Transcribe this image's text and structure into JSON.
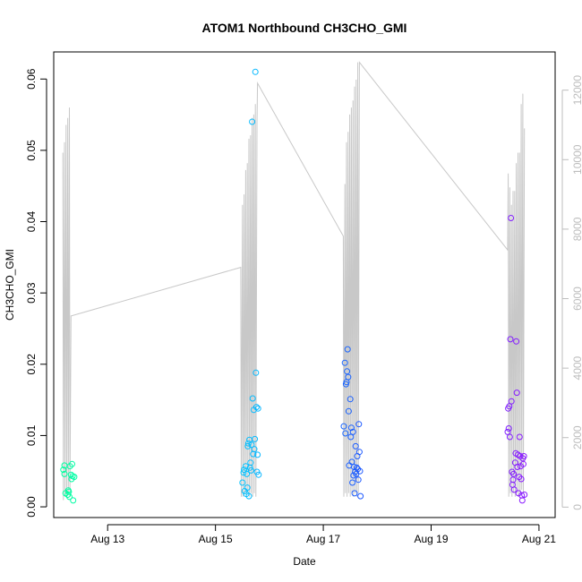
{
  "chart_data": {
    "type": "scatter",
    "title": "ATOM1 Northbound CH3CHO_GMI",
    "xlabel": "Date",
    "ylabel": "CH3CHO_GMI",
    "y2label": "",
    "x_ticks": [
      {
        "value": 13,
        "label": "Aug 13"
      },
      {
        "value": 15,
        "label": "Aug 15"
      },
      {
        "value": 17,
        "label": "Aug 17"
      },
      {
        "value": 19,
        "label": "Aug 19"
      },
      {
        "value": 21,
        "label": "Aug 21"
      }
    ],
    "xlim": [
      12.0,
      21.3
    ],
    "ylim": [
      -0.0015,
      0.0638
    ],
    "y_ticks": [
      "0.00",
      "0.01",
      "0.02",
      "0.03",
      "0.04",
      "0.05",
      "0.06"
    ],
    "y2lim": [
      -300,
      13100
    ],
    "y2_ticks": [
      "0",
      "2000",
      "4000",
      "6000",
      "8000",
      "10000",
      "12000"
    ],
    "legend": "none",
    "grid": false,
    "colors": {
      "altitude_line": "#c8c8c8",
      "axis": "#000000",
      "secondary_axis": "#bdbdbd",
      "color_scale": [
        "#00ffa0",
        "#00dcff",
        "#2050ff",
        "#8a1aff"
      ]
    },
    "series": [
      {
        "type": "scatter",
        "x_unit": "day of August",
        "points": [
          [
            12.18,
            0.0052
          ],
          [
            12.2,
            0.0046
          ],
          [
            12.22,
            0.0019
          ],
          [
            12.2,
            0.0058
          ],
          [
            12.26,
            0.0017
          ],
          [
            12.27,
            0.0023
          ],
          [
            12.28,
            0.0021
          ],
          [
            12.29,
            0.0014
          ],
          [
            12.3,
            0.0057
          ],
          [
            12.32,
            0.0045
          ],
          [
            12.33,
            0.0039
          ],
          [
            12.34,
            0.006
          ],
          [
            12.35,
            0.0043
          ],
          [
            12.36,
            0.0009
          ],
          [
            12.38,
            0.0042
          ],
          [
            15.5,
            0.0034
          ],
          [
            15.52,
            0.0048
          ],
          [
            15.53,
            0.0052
          ],
          [
            15.54,
            0.0022
          ],
          [
            15.56,
            0.0057
          ],
          [
            15.57,
            0.0018
          ],
          [
            15.58,
            0.0046
          ],
          [
            15.59,
            0.0027
          ],
          [
            15.6,
            0.0085
          ],
          [
            15.61,
            0.0089
          ],
          [
            15.62,
            0.0015
          ],
          [
            15.63,
            0.0094
          ],
          [
            15.64,
            0.0055
          ],
          [
            15.65,
            0.0062
          ],
          [
            15.66,
            0.0051
          ],
          [
            15.67,
            0.0087
          ],
          [
            15.68,
            0.054
          ],
          [
            15.69,
            0.0152
          ],
          [
            15.7,
            0.0074
          ],
          [
            15.71,
            0.0136
          ],
          [
            15.72,
            0.0081
          ],
          [
            15.73,
            0.0095
          ],
          [
            15.74,
            0.061
          ],
          [
            15.75,
            0.0188
          ],
          [
            15.76,
            0.014
          ],
          [
            15.77,
            0.0049
          ],
          [
            15.78,
            0.0073
          ],
          [
            15.79,
            0.0138
          ],
          [
            15.8,
            0.0045
          ],
          [
            17.38,
            0.0113
          ],
          [
            17.4,
            0.0202
          ],
          [
            17.41,
            0.0103
          ],
          [
            17.42,
            0.0172
          ],
          [
            17.43,
            0.0175
          ],
          [
            17.44,
            0.019
          ],
          [
            17.45,
            0.0221
          ],
          [
            17.46,
            0.0182
          ],
          [
            17.47,
            0.0134
          ],
          [
            17.48,
            0.0058
          ],
          [
            17.5,
            0.0151
          ],
          [
            17.51,
            0.0098
          ],
          [
            17.52,
            0.0111
          ],
          [
            17.53,
            0.0063
          ],
          [
            17.54,
            0.0034
          ],
          [
            17.55,
            0.0105
          ],
          [
            17.56,
            0.0044
          ],
          [
            17.57,
            0.0056
          ],
          [
            17.58,
            0.0019
          ],
          [
            17.59,
            0.0049
          ],
          [
            17.6,
            0.0085
          ],
          [
            17.61,
            0.0046
          ],
          [
            17.62,
            0.0055
          ],
          [
            17.63,
            0.0071
          ],
          [
            17.64,
            0.0053
          ],
          [
            17.65,
            0.0038
          ],
          [
            17.66,
            0.0116
          ],
          [
            17.67,
            0.0077
          ],
          [
            17.68,
            0.005
          ],
          [
            17.69,
            0.0015
          ],
          [
            20.42,
            0.0105
          ],
          [
            20.43,
            0.0138
          ],
          [
            20.44,
            0.011
          ],
          [
            20.45,
            0.0141
          ],
          [
            20.46,
            0.0098
          ],
          [
            20.47,
            0.0235
          ],
          [
            20.48,
            0.0405
          ],
          [
            20.49,
            0.0148
          ],
          [
            20.5,
            0.0049
          ],
          [
            20.51,
            0.0031
          ],
          [
            20.52,
            0.0038
          ],
          [
            20.53,
            0.0046
          ],
          [
            20.54,
            0.0024
          ],
          [
            20.56,
            0.0062
          ],
          [
            20.57,
            0.0075
          ],
          [
            20.58,
            0.0232
          ],
          [
            20.59,
            0.016
          ],
          [
            20.6,
            0.0056
          ],
          [
            20.61,
            0.0073
          ],
          [
            20.62,
            0.0019
          ],
          [
            20.63,
            0.0042
          ],
          [
            20.64,
            0.0098
          ],
          [
            20.65,
            0.0071
          ],
          [
            20.66,
            0.0057
          ],
          [
            20.67,
            0.0039
          ],
          [
            20.68,
            0.0016
          ],
          [
            20.69,
            0.0009
          ],
          [
            20.7,
            0.0068
          ],
          [
            20.71,
            0.006
          ],
          [
            20.72,
            0.0071
          ],
          [
            20.73,
            0.0017
          ]
        ]
      },
      {
        "type": "line",
        "axis": "secondary",
        "x_unit": "day of August",
        "points": [
          [
            12.17,
            10200
          ],
          [
            12.18,
            200
          ],
          [
            12.2,
            10500
          ],
          [
            12.21,
            300
          ],
          [
            12.23,
            11000
          ],
          [
            12.24,
            300
          ],
          [
            12.26,
            11200
          ],
          [
            12.27,
            400
          ],
          [
            12.29,
            11500
          ],
          [
            12.3,
            300
          ],
          [
            12.32,
            5500
          ],
          [
            15.47,
            6900
          ],
          [
            15.48,
            300
          ],
          [
            15.5,
            8700
          ],
          [
            15.51,
            300
          ],
          [
            15.53,
            9000
          ],
          [
            15.54,
            400
          ],
          [
            15.56,
            9700
          ],
          [
            15.57,
            300
          ],
          [
            15.59,
            9900
          ],
          [
            15.6,
            400
          ],
          [
            15.62,
            10600
          ],
          [
            15.63,
            300
          ],
          [
            15.65,
            10700
          ],
          [
            15.66,
            400
          ],
          [
            15.68,
            11200
          ],
          [
            15.69,
            300
          ],
          [
            15.71,
            11300
          ],
          [
            15.72,
            400
          ],
          [
            15.74,
            11600
          ],
          [
            15.75,
            300
          ],
          [
            15.77,
            11000
          ],
          [
            15.78,
            12200
          ],
          [
            17.37,
            7800
          ],
          [
            17.38,
            300
          ],
          [
            17.4,
            9300
          ],
          [
            17.41,
            400
          ],
          [
            17.43,
            10500
          ],
          [
            17.44,
            300
          ],
          [
            17.46,
            10800
          ],
          [
            17.47,
            400
          ],
          [
            17.49,
            11300
          ],
          [
            17.5,
            300
          ],
          [
            17.52,
            11500
          ],
          [
            17.53,
            400
          ],
          [
            17.55,
            11700
          ],
          [
            17.56,
            300
          ],
          [
            17.58,
            12100
          ],
          [
            17.59,
            400
          ],
          [
            17.61,
            12300
          ],
          [
            17.62,
            300
          ],
          [
            17.64,
            12800
          ],
          [
            17.65,
            400
          ],
          [
            17.67,
            12800
          ],
          [
            20.42,
            7400
          ],
          [
            20.43,
            9600
          ],
          [
            20.44,
            300
          ],
          [
            20.46,
            9200
          ],
          [
            20.47,
            400
          ],
          [
            20.49,
            8700
          ],
          [
            20.5,
            300
          ],
          [
            20.52,
            9100
          ],
          [
            20.53,
            400
          ],
          [
            20.55,
            9100
          ],
          [
            20.56,
            300
          ],
          [
            20.58,
            9900
          ],
          [
            20.59,
            400
          ],
          [
            20.61,
            10200
          ],
          [
            20.62,
            300
          ],
          [
            20.64,
            10200
          ],
          [
            20.65,
            400
          ],
          [
            20.67,
            11600
          ],
          [
            20.68,
            500
          ],
          [
            20.7,
            11900
          ],
          [
            20.71,
            400
          ],
          [
            20.73,
            10900
          ]
        ]
      }
    ]
  }
}
